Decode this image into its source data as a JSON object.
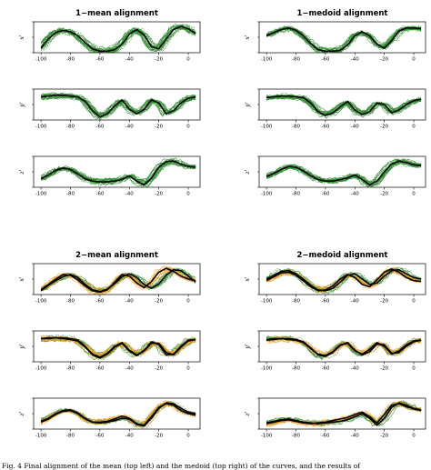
{
  "colors": {
    "cluster1": "#2e8b2e",
    "cluster2": "#f39a1e",
    "mean": "#000000"
  },
  "caption": "Fig. 4  Final alignment of the mean (top left) and the medoid (top right) of the curves, and the results of",
  "chart_data": [
    {
      "type": "line",
      "title": "1−mean alignment",
      "x": [
        -100,
        -95,
        -90,
        -85,
        -80,
        -75,
        -70,
        -65,
        -60,
        -55,
        -50,
        -45,
        -40,
        -35,
        -30,
        -25,
        -20,
        -15,
        -10,
        -5,
        0,
        5
      ],
      "xlim": [
        -105,
        8
      ],
      "ylim": [
        -1,
        1
      ],
      "xticks": [
        -100,
        -80,
        -60,
        -40,
        -20,
        0
      ],
      "panels": [
        {
          "ylabel": "x'",
          "clusters": 1,
          "mean": [
            [
              -0.7,
              -0.1,
              0.3,
              0.45,
              0.35,
              0.1,
              -0.35,
              -0.75,
              -0.9,
              -0.9,
              -0.8,
              -0.45,
              0.2,
              0.5,
              0.15,
              -0.6,
              -0.75,
              -0.1,
              0.5,
              0.7,
              0.55,
              0.25
            ]
          ]
        },
        {
          "ylabel": "y'",
          "clusters": 1,
          "mean": [
            [
              0.5,
              0.55,
              0.6,
              0.6,
              0.55,
              0.5,
              0.2,
              -0.4,
              -0.8,
              -0.6,
              -0.1,
              0.3,
              -0.3,
              -0.6,
              -0.3,
              0.3,
              0.1,
              -0.6,
              -0.4,
              0.1,
              0.4,
              0.5
            ]
          ]
        },
        {
          "ylabel": "z'",
          "clusters": 1,
          "mean": [
            [
              -0.45,
              -0.2,
              0.1,
              0.25,
              0.15,
              -0.15,
              -0.45,
              -0.6,
              -0.65,
              -0.65,
              -0.6,
              -0.5,
              -0.25,
              -0.6,
              -0.85,
              -0.4,
              0.3,
              0.65,
              0.7,
              0.5,
              0.35,
              0.3
            ]
          ]
        }
      ]
    },
    {
      "type": "line",
      "title": "1−medoid alignment",
      "x": [
        -100,
        -95,
        -90,
        -85,
        -80,
        -75,
        -70,
        -65,
        -60,
        -55,
        -50,
        -45,
        -40,
        -35,
        -30,
        -25,
        -20,
        -15,
        -10,
        -5,
        0,
        5
      ],
      "xlim": [
        -105,
        8
      ],
      "ylim": [
        -1,
        1
      ],
      "xticks": [
        -100,
        -80,
        -60,
        -40,
        -20,
        0
      ],
      "panels": [
        {
          "ylabel": "x'",
          "clusters": 1,
          "mean": [
            [
              0.1,
              0.3,
              0.5,
              0.6,
              0.45,
              0.1,
              -0.4,
              -0.8,
              -0.9,
              -0.9,
              -0.85,
              -0.5,
              0.1,
              0.35,
              0.1,
              -0.45,
              -0.7,
              -0.2,
              0.4,
              0.6,
              0.6,
              0.55
            ]
          ]
        },
        {
          "ylabel": "y'",
          "clusters": 1,
          "mean": [
            [
              0.45,
              0.5,
              0.55,
              0.55,
              0.5,
              0.45,
              0.1,
              -0.45,
              -0.7,
              -0.55,
              -0.15,
              0.2,
              -0.35,
              -0.65,
              -0.45,
              0.1,
              0.0,
              -0.55,
              -0.35,
              0.0,
              0.25,
              0.35
            ]
          ]
        },
        {
          "ylabel": "z'",
          "clusters": 1,
          "mean": [
            [
              -0.3,
              -0.1,
              0.15,
              0.35,
              0.3,
              0.05,
              -0.25,
              -0.5,
              -0.6,
              -0.6,
              -0.5,
              -0.4,
              -0.2,
              -0.5,
              -0.85,
              -0.6,
              0.0,
              0.5,
              0.7,
              0.6,
              0.45,
              0.4
            ]
          ]
        }
      ]
    },
    {
      "type": "line",
      "title": "2−mean alignment",
      "x": [
        -100,
        -95,
        -90,
        -85,
        -80,
        -75,
        -70,
        -65,
        -60,
        -55,
        -50,
        -45,
        -40,
        -35,
        -30,
        -25,
        -20,
        -15,
        -10,
        -5,
        0,
        5
      ],
      "xlim": [
        -105,
        8
      ],
      "ylim": [
        -1,
        1
      ],
      "xticks": [
        -100,
        -80,
        -60,
        -40,
        -20,
        0
      ],
      "panels": [
        {
          "ylabel": "x'",
          "clusters": 2,
          "mean": [
            [
              -0.75,
              -0.4,
              -0.1,
              0.15,
              0.3,
              0.1,
              -0.35,
              -0.7,
              -0.8,
              -0.65,
              -0.3,
              0.15,
              0.35,
              0.1,
              -0.35,
              -0.6,
              -0.3,
              0.25,
              0.6,
              0.55,
              0.2,
              -0.2
            ],
            [
              -0.7,
              -0.35,
              0.0,
              0.3,
              0.25,
              -0.05,
              -0.45,
              -0.75,
              -0.85,
              -0.7,
              -0.2,
              0.3,
              0.2,
              -0.25,
              -0.55,
              -0.15,
              0.45,
              0.7,
              0.5,
              0.2,
              0.0,
              -0.1
            ]
          ]
        },
        {
          "ylabel": "y'",
          "clusters": 2,
          "mean": [
            [
              0.5,
              0.5,
              0.55,
              0.55,
              0.5,
              0.4,
              0.0,
              -0.55,
              -0.75,
              -0.5,
              -0.05,
              0.2,
              -0.3,
              -0.6,
              -0.25,
              0.3,
              0.1,
              -0.55,
              -0.5,
              0.0,
              0.4,
              0.45
            ],
            [
              0.5,
              0.55,
              0.55,
              0.5,
              0.45,
              0.35,
              -0.05,
              -0.5,
              -0.7,
              -0.45,
              0.0,
              0.25,
              -0.25,
              -0.55,
              -0.3,
              0.2,
              0.2,
              -0.4,
              -0.55,
              -0.05,
              0.35,
              0.45
            ]
          ]
        },
        {
          "ylabel": "z'",
          "clusters": 2,
          "mean": [
            [
              -0.5,
              -0.3,
              0.0,
              0.2,
              0.25,
              0.05,
              -0.3,
              -0.55,
              -0.6,
              -0.55,
              -0.45,
              -0.3,
              -0.35,
              -0.7,
              -0.8,
              -0.3,
              0.35,
              0.7,
              0.65,
              0.35,
              0.1,
              0.0
            ],
            [
              -0.55,
              -0.35,
              -0.05,
              0.15,
              0.2,
              0.0,
              -0.35,
              -0.55,
              -0.55,
              -0.5,
              -0.35,
              -0.15,
              -0.3,
              -0.65,
              -0.75,
              -0.2,
              0.4,
              0.65,
              0.55,
              0.2,
              0.0,
              -0.1
            ]
          ]
        }
      ]
    },
    {
      "type": "line",
      "title": "2−medoid alignment",
      "x": [
        -100,
        -95,
        -90,
        -85,
        -80,
        -75,
        -70,
        -65,
        -60,
        -55,
        -50,
        -45,
        -40,
        -35,
        -30,
        -25,
        -20,
        -15,
        -10,
        -5,
        0,
        5
      ],
      "xlim": [
        -105,
        8
      ],
      "ylim": [
        -1,
        1
      ],
      "xticks": [
        -100,
        -80,
        -60,
        -40,
        -20,
        0
      ],
      "panels": [
        {
          "ylabel": "x'",
          "clusters": 2,
          "mean": [
            [
              0.0,
              0.25,
              0.5,
              0.55,
              0.35,
              0.0,
              -0.4,
              -0.7,
              -0.75,
              -0.6,
              -0.2,
              0.25,
              0.35,
              0.0,
              -0.35,
              -0.25,
              0.2,
              0.55,
              0.6,
              0.35,
              0.1,
              0.0
            ],
            [
              -0.1,
              0.15,
              0.4,
              0.45,
              0.25,
              -0.1,
              -0.5,
              -0.75,
              -0.7,
              -0.45,
              0.0,
              0.3,
              0.1,
              -0.35,
              -0.5,
              -0.05,
              0.45,
              0.65,
              0.45,
              0.1,
              -0.1,
              -0.15
            ]
          ]
        },
        {
          "ylabel": "y'",
          "clusters": 2,
          "mean": [
            [
              0.45,
              0.5,
              0.5,
              0.5,
              0.45,
              0.3,
              -0.1,
              -0.55,
              -0.65,
              -0.4,
              0.05,
              0.25,
              -0.25,
              -0.55,
              -0.35,
              0.15,
              0.1,
              -0.45,
              -0.4,
              0.0,
              0.3,
              0.4
            ],
            [
              0.4,
              0.45,
              0.5,
              0.45,
              0.4,
              0.25,
              -0.15,
              -0.5,
              -0.6,
              -0.35,
              0.1,
              0.2,
              -0.3,
              -0.5,
              -0.2,
              0.25,
              0.0,
              -0.5,
              -0.3,
              0.1,
              0.35,
              0.4
            ]
          ]
        },
        {
          "ylabel": "z'",
          "clusters": 2,
          "mean": [
            [
              -0.6,
              -0.5,
              -0.4,
              -0.35,
              -0.45,
              -0.55,
              -0.6,
              -0.65,
              -0.6,
              -0.55,
              -0.5,
              -0.4,
              -0.2,
              0.0,
              -0.3,
              -0.75,
              -0.3,
              0.4,
              0.7,
              0.55,
              0.35,
              0.25
            ],
            [
              -0.65,
              -0.55,
              -0.45,
              -0.4,
              -0.5,
              -0.6,
              -0.65,
              -0.6,
              -0.55,
              -0.45,
              -0.35,
              -0.25,
              -0.05,
              0.1,
              -0.2,
              -0.6,
              -0.05,
              0.55,
              0.65,
              0.45,
              0.3,
              0.2
            ]
          ]
        }
      ]
    }
  ]
}
